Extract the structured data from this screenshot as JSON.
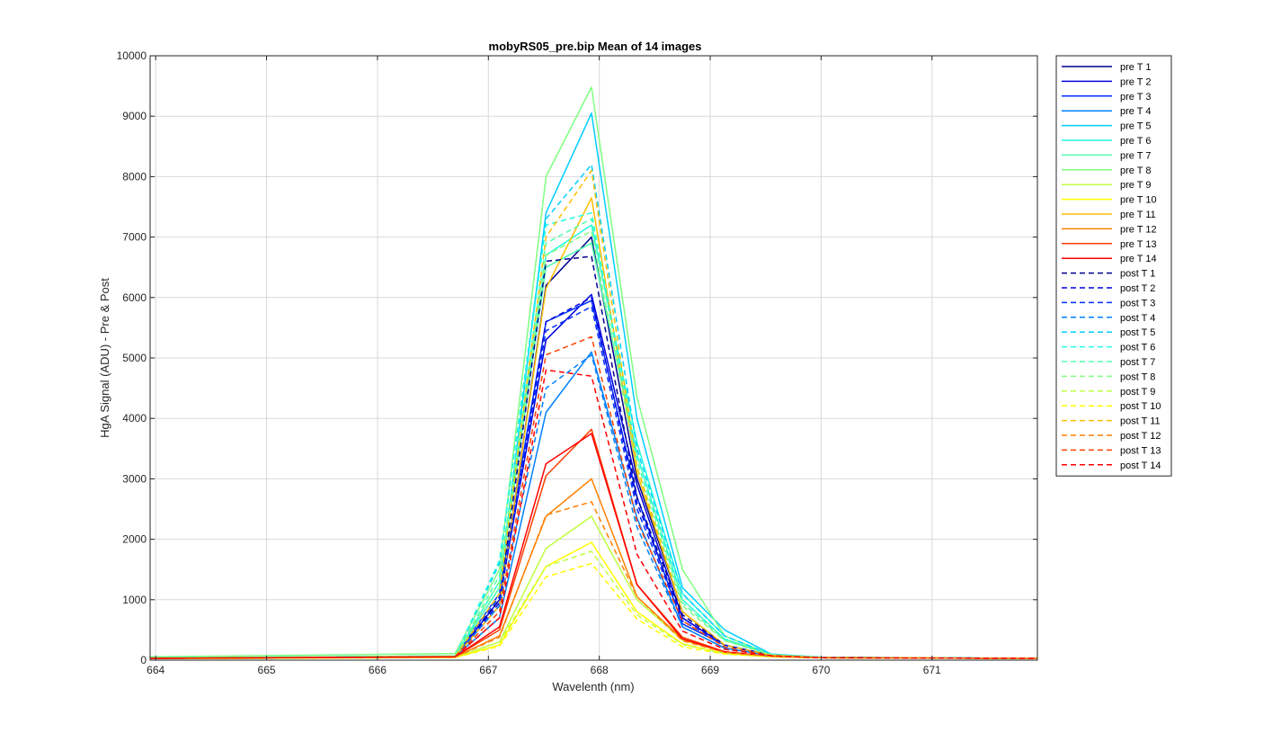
{
  "chart_data": {
    "type": "line",
    "title": "mobyRS05_pre.bip  Mean of 14 images",
    "xlabel": "Wavelenth (nm)",
    "ylabel": "HgA Signal (ADU) - Pre & Post",
    "xlim": [
      663.95,
      671.95
    ],
    "ylim": [
      0,
      10000
    ],
    "xticks": [
      664,
      665,
      666,
      667,
      668,
      669,
      670,
      671
    ],
    "yticks": [
      0,
      1000,
      2000,
      3000,
      4000,
      5000,
      6000,
      7000,
      8000,
      9000,
      10000
    ],
    "grid": true,
    "legend_position": "outside-top-right",
    "x": [
      663.95,
      666.7,
      667.1,
      667.52,
      667.93,
      668.34,
      668.75,
      669.13,
      669.55,
      670.0,
      671.95
    ],
    "series": [
      {
        "name": "pre T 1",
        "color": "#00008F",
        "style": "solid",
        "values": [
          30,
          60,
          900,
          6200,
          7000,
          3000,
          800,
          250,
          80,
          45,
          30
        ]
      },
      {
        "name": "pre T 2",
        "color": "#0000DF",
        "style": "solid",
        "values": [
          30,
          60,
          1000,
          5300,
          6050,
          2900,
          700,
          250,
          80,
          45,
          30
        ]
      },
      {
        "name": "pre T 3",
        "color": "#0030FF",
        "style": "solid",
        "values": [
          30,
          60,
          1100,
          5600,
          5950,
          2700,
          600,
          250,
          80,
          45,
          30
        ]
      },
      {
        "name": "pre T 4",
        "color": "#0080FF",
        "style": "solid",
        "values": [
          30,
          60,
          700,
          4100,
          5100,
          2350,
          550,
          200,
          75,
          40,
          30
        ]
      },
      {
        "name": "pre T 5",
        "color": "#00CFFF",
        "style": "solid",
        "values": [
          35,
          70,
          1200,
          7400,
          9050,
          4000,
          1200,
          500,
          100,
          50,
          30
        ]
      },
      {
        "name": "pre T 6",
        "color": "#20FFDF",
        "style": "solid",
        "values": [
          35,
          70,
          1300,
          6700,
          7200,
          3600,
          1100,
          400,
          90,
          45,
          30
        ]
      },
      {
        "name": "pre T 7",
        "color": "#50FFAF",
        "style": "solid",
        "values": [
          35,
          70,
          1200,
          6500,
          6900,
          3400,
          1000,
          350,
          90,
          45,
          30
        ]
      },
      {
        "name": "pre T 8",
        "color": "#80FF80",
        "style": "solid",
        "values": [
          55,
          110,
          1500,
          8000,
          9480,
          4350,
          1500,
          400,
          90,
          45,
          30
        ]
      },
      {
        "name": "pre T 9",
        "color": "#BFFF40",
        "style": "solid",
        "values": [
          30,
          50,
          300,
          1850,
          2380,
          1000,
          330,
          130,
          60,
          40,
          30
        ]
      },
      {
        "name": "pre T 10",
        "color": "#FFFF00",
        "style": "solid",
        "values": [
          25,
          45,
          250,
          1550,
          1950,
          800,
          270,
          110,
          55,
          40,
          30
        ]
      },
      {
        "name": "pre T 11",
        "color": "#FFBF00",
        "style": "solid",
        "values": [
          30,
          60,
          900,
          6150,
          7650,
          3100,
          800,
          250,
          80,
          45,
          30
        ]
      },
      {
        "name": "pre T 12",
        "color": "#FF8000",
        "style": "solid",
        "values": [
          30,
          50,
          400,
          2380,
          3000,
          1050,
          350,
          130,
          60,
          40,
          30
        ]
      },
      {
        "name": "pre T 13",
        "color": "#FF4000",
        "style": "solid",
        "values": [
          30,
          55,
          500,
          3050,
          3820,
          1250,
          380,
          140,
          60,
          40,
          30
        ]
      },
      {
        "name": "pre T 14",
        "color": "#FF0000",
        "style": "solid",
        "values": [
          30,
          55,
          550,
          3250,
          3750,
          1250,
          350,
          140,
          60,
          40,
          30
        ]
      },
      {
        "name": "post T 1",
        "color": "#00008F",
        "style": "dashed",
        "values": [
          30,
          60,
          1000,
          6600,
          6680,
          2700,
          750,
          250,
          80,
          45,
          30
        ]
      },
      {
        "name": "post T 2",
        "color": "#0000DF",
        "style": "dashed",
        "values": [
          30,
          60,
          950,
          5600,
          6000,
          2600,
          700,
          250,
          80,
          45,
          30
        ]
      },
      {
        "name": "post T 3",
        "color": "#0030FF",
        "style": "dashed",
        "values": [
          30,
          60,
          1050,
          5450,
          5850,
          2500,
          650,
          250,
          80,
          45,
          30
        ]
      },
      {
        "name": "post T 4",
        "color": "#0080FF",
        "style": "dashed",
        "values": [
          30,
          60,
          900,
          4500,
          5050,
          2200,
          550,
          200,
          75,
          40,
          30
        ]
      },
      {
        "name": "post T 5",
        "color": "#00CFFF",
        "style": "dashed",
        "values": [
          35,
          70,
          1600,
          7300,
          8200,
          3500,
          1100,
          400,
          90,
          45,
          30
        ]
      },
      {
        "name": "post T 6",
        "color": "#20FFDF",
        "style": "dashed",
        "values": [
          35,
          70,
          1650,
          7200,
          7400,
          3400,
          1000,
          350,
          90,
          45,
          30
        ]
      },
      {
        "name": "post T 7",
        "color": "#50FFAF",
        "style": "dashed",
        "values": [
          35,
          70,
          1400,
          6900,
          7300,
          3300,
          950,
          330,
          90,
          45,
          30
        ]
      },
      {
        "name": "post T 8",
        "color": "#80FF80",
        "style": "dashed",
        "values": [
          35,
          70,
          1300,
          6700,
          7100,
          3200,
          900,
          320,
          90,
          45,
          30
        ]
      },
      {
        "name": "post T 9",
        "color": "#BFFF40",
        "style": "dashed",
        "values": [
          25,
          45,
          300,
          1550,
          1800,
          750,
          260,
          110,
          55,
          40,
          30
        ]
      },
      {
        "name": "post T 10",
        "color": "#FFFF00",
        "style": "dashed",
        "values": [
          25,
          45,
          230,
          1380,
          1600,
          680,
          220,
          100,
          55,
          40,
          30
        ]
      },
      {
        "name": "post T 11",
        "color": "#FFBF00",
        "style": "dashed",
        "values": [
          30,
          60,
          1100,
          7000,
          8100,
          3200,
          800,
          250,
          80,
          45,
          30
        ]
      },
      {
        "name": "post T 12",
        "color": "#FF8000",
        "style": "dashed",
        "values": [
          30,
          50,
          380,
          2400,
          2620,
          1050,
          320,
          130,
          60,
          40,
          30
        ]
      },
      {
        "name": "post T 13",
        "color": "#FF4000",
        "style": "dashed",
        "values": [
          30,
          55,
          800,
          5050,
          5350,
          2300,
          650,
          220,
          75,
          40,
          30
        ]
      },
      {
        "name": "post T 14",
        "color": "#FF0000",
        "style": "dashed",
        "values": [
          30,
          55,
          700,
          4800,
          4700,
          1750,
          480,
          180,
          70,
          40,
          30
        ]
      }
    ]
  }
}
